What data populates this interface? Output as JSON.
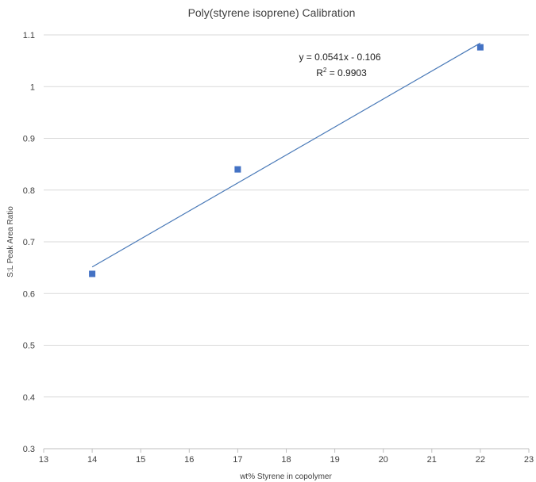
{
  "chart_data": {
    "type": "scatter",
    "title": "Poly(styrene isoprene)  Calibration",
    "xlabel": "wt% Styrene in copolymer",
    "ylabel": "S:L Peak Area Ratio",
    "xlim": [
      13,
      23
    ],
    "ylim": [
      0.3,
      1.1
    ],
    "x_ticks": [
      13,
      14,
      15,
      16,
      17,
      18,
      19,
      20,
      21,
      22,
      23
    ],
    "y_ticks": [
      0.3,
      0.4,
      0.5,
      0.6,
      0.7,
      0.8,
      0.9,
      1,
      1.1
    ],
    "x_tick_labels": [
      "13",
      "14",
      "15",
      "16",
      "17",
      "18",
      "19",
      "20",
      "21",
      "22",
      "23"
    ],
    "y_tick_labels": [
      "0.3",
      "0.4",
      "0.5",
      "0.6",
      "0.7",
      "0.8",
      "0.9",
      "1",
      "1.1"
    ],
    "grid": true,
    "series": [
      {
        "x": [
          14,
          17,
          22
        ],
        "y": [
          0.638,
          0.84,
          1.076
        ],
        "marker": "square",
        "color": "#4472c4"
      }
    ],
    "trendline": {
      "type": "linear",
      "slope": 0.0541,
      "intercept": -0.106,
      "x_range": [
        14,
        22
      ],
      "color": "#4a7ab8"
    },
    "annotations": {
      "equation": "y = 0.0541x - 0.106",
      "r2_prefix": "R",
      "r2_superscript": "2",
      "r2_suffix": " = 0.9903"
    },
    "colors": {
      "grid": "#d9d9d9",
      "axis": "#bfbfbf",
      "text": "#404040"
    }
  }
}
